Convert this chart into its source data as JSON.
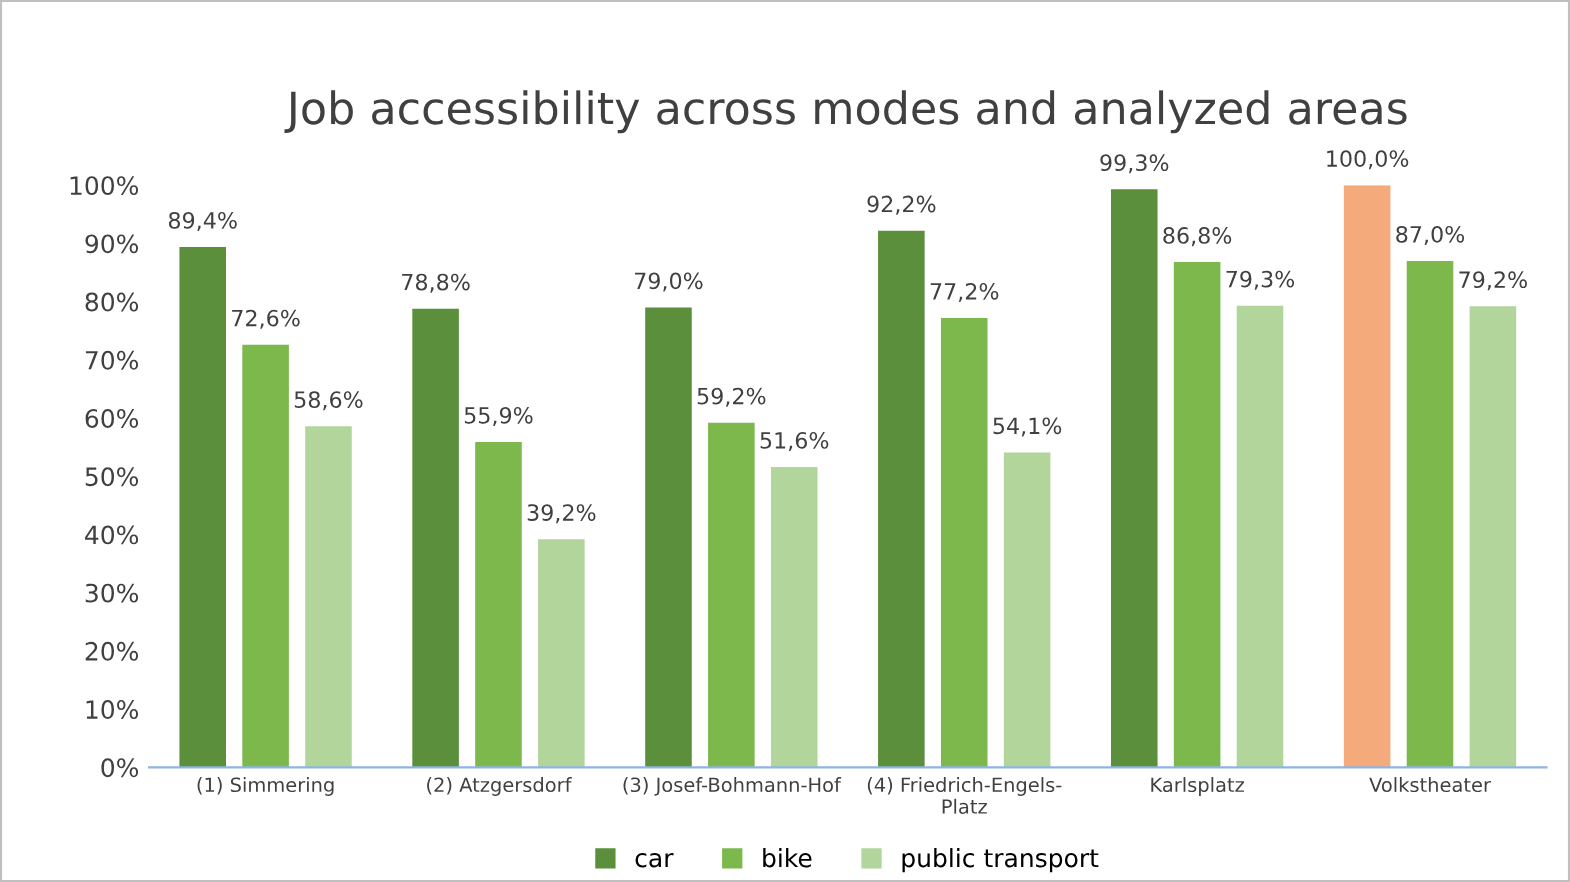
{
  "chart_data": {
    "type": "bar",
    "title": "Job accessibility across modes and analyzed areas",
    "categories": [
      "(1) Simmering",
      "(2) Atzgersdorf",
      "(3) Josef-Bohmann-Hof",
      "(4) Friedrich-Engels-\nPlatz",
      "Karlsplatz",
      "Volkstheater"
    ],
    "series": [
      {
        "name": "car",
        "color": "#5b8f3b",
        "colors": [
          "#5b8f3b",
          "#5b8f3b",
          "#5b8f3b",
          "#5b8f3b",
          "#5b8f3b",
          "#f4aa7a"
        ],
        "values": [
          89.4,
          78.8,
          79.0,
          92.2,
          99.3,
          100.0
        ],
        "value_labels": [
          "89,4%",
          "78,8%",
          "79,0%",
          "92,2%",
          "99,3%",
          "100,0%"
        ]
      },
      {
        "name": "bike",
        "color": "#7cb84c",
        "values": [
          72.6,
          55.9,
          59.2,
          77.2,
          86.8,
          87.0
        ],
        "value_labels": [
          "72,6%",
          "55,9%",
          "59,2%",
          "77,2%",
          "86,8%",
          "87,0%"
        ]
      },
      {
        "name": "public transport",
        "color": "#b2d59c",
        "values": [
          58.6,
          39.2,
          51.6,
          54.1,
          79.3,
          79.2
        ],
        "value_labels": [
          "58,6%",
          "39,2%",
          "51,6%",
          "54,1%",
          "79,3%",
          "79,2%"
        ]
      }
    ],
    "ylim": [
      0,
      100
    ],
    "yticks": [
      {
        "value": 0,
        "label": "0%"
      },
      {
        "value": 10,
        "label": "10%"
      },
      {
        "value": 20,
        "label": "20%"
      },
      {
        "value": 30,
        "label": "30%"
      },
      {
        "value": 40,
        "label": "40%"
      },
      {
        "value": 50,
        "label": "50%"
      },
      {
        "value": 60,
        "label": "60%"
      },
      {
        "value": 70,
        "label": "70%"
      },
      {
        "value": 80,
        "label": "80%"
      },
      {
        "value": 90,
        "label": "90%"
      },
      {
        "value": 100,
        "label": "100%"
      }
    ],
    "grid": false,
    "legend": "bottom"
  }
}
